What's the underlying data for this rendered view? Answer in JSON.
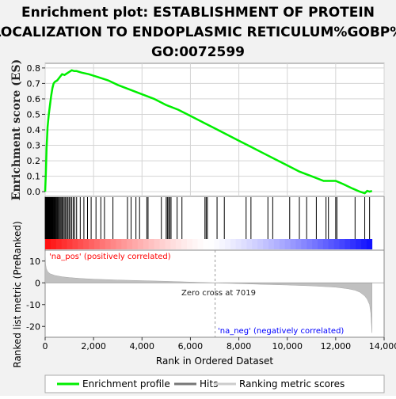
{
  "chart_data": {
    "type": "line",
    "title_lines": [
      "Enrichment plot: ESTABLISHMENT OF PROTEIN",
      "LOCALIZATION TO ENDOPLASMIC RETICULUM%GOBP%",
      "GO:0072599"
    ],
    "es_panel": {
      "ylabel": "Enrichment score (ES)",
      "ylim": [
        -0.03,
        0.83
      ],
      "yticks": [
        "0.0",
        "0.1",
        "0.2",
        "0.3",
        "0.4",
        "0.5",
        "0.6",
        "0.7",
        "0.8"
      ],
      "ytick_values": [
        0.0,
        0.1,
        0.2,
        0.3,
        0.4,
        0.5,
        0.6,
        0.7,
        0.8
      ],
      "series": [
        {
          "name": "Enrichment profile",
          "color": "#00ee00",
          "x": [
            0,
            30,
            60,
            100,
            150,
            200,
            250,
            300,
            350,
            400,
            500,
            600,
            700,
            800,
            900,
            1000,
            1100,
            1200,
            1300,
            1500,
            1800,
            2200,
            2600,
            3000,
            3500,
            4000,
            4500,
            5000,
            5500,
            6000,
            6500,
            7000,
            7500,
            8000,
            8500,
            9000,
            9500,
            10000,
            10500,
            11000,
            11500,
            12000,
            12300,
            12700,
            13000,
            13200,
            13300,
            13400,
            13500
          ],
          "y": [
            0.0,
            0.12,
            0.28,
            0.42,
            0.5,
            0.56,
            0.62,
            0.67,
            0.7,
            0.71,
            0.72,
            0.74,
            0.76,
            0.755,
            0.765,
            0.775,
            0.785,
            0.78,
            0.78,
            0.77,
            0.76,
            0.74,
            0.72,
            0.69,
            0.66,
            0.63,
            0.6,
            0.56,
            0.53,
            0.49,
            0.45,
            0.41,
            0.37,
            0.33,
            0.29,
            0.25,
            0.21,
            0.17,
            0.13,
            0.1,
            0.07,
            0.07,
            0.05,
            0.02,
            0.0,
            -0.01,
            0.005,
            0.0,
            0.005
          ]
        }
      ]
    },
    "hits_panel": {
      "hit_ranks": [
        5,
        12,
        20,
        28,
        35,
        44,
        52,
        60,
        70,
        80,
        90,
        100,
        112,
        125,
        138,
        150,
        165,
        180,
        195,
        210,
        228,
        245,
        262,
        280,
        300,
        320,
        345,
        370,
        395,
        420,
        450,
        480,
        510,
        545,
        580,
        620,
        660,
        700,
        745,
        790,
        840,
        890,
        940,
        990,
        1040,
        1100,
        1160,
        1220,
        1300,
        1450,
        1600,
        1750,
        1900,
        2100,
        2300,
        2450,
        2800,
        3400,
        3550,
        3750,
        3900,
        4200,
        4250,
        4800,
        5000,
        5050,
        5100,
        5150,
        5200,
        5450,
        5650,
        6600,
        6650,
        6700,
        7100,
        7400,
        8300,
        8500,
        9200,
        9400,
        10100,
        10500,
        10800,
        11200,
        11600,
        11700,
        12000,
        12050,
        12800,
        13200,
        13400
      ]
    },
    "ranking_panel": {
      "ylabel": "Ranked list metric (PreRanked)",
      "ylim": [
        -25,
        15
      ],
      "yticks": [
        "10",
        "0",
        "-10",
        "-20"
      ],
      "ytick_values": [
        10,
        0,
        -10,
        -20
      ],
      "rank_x": [
        0,
        20,
        50,
        100,
        200,
        400,
        700,
        1000,
        1500,
        2000,
        3000,
        4000,
        5000,
        6000,
        7019,
        8000,
        9000,
        10000,
        11000,
        12000,
        12500,
        12800,
        13000,
        13200,
        13300,
        13400,
        13450,
        13500
      ],
      "metric_y": [
        14.5,
        8.5,
        6.5,
        5.2,
        4.2,
        3.4,
        2.8,
        2.4,
        2.0,
        1.7,
        1.3,
        1.0,
        0.7,
        0.35,
        0.0,
        -0.35,
        -0.7,
        -1.0,
        -1.4,
        -2.0,
        -2.7,
        -3.4,
        -4.3,
        -6.0,
        -7.5,
        -10.0,
        -14.0,
        -23.0
      ],
      "pos_label": "'na_pos' (positively correlated)",
      "neg_label": "'na_neg' (negatively correlated)",
      "zero_cross_label": "Zero cross at 7019",
      "zero_cross_rank": 7019
    },
    "xaxis": {
      "label": "Rank in Ordered Dataset",
      "xlim": [
        0,
        14000
      ],
      "xticks": [
        "0",
        "2,000",
        "4,000",
        "6,000",
        "8,000",
        "10,000",
        "12,000",
        "14,000"
      ],
      "xtick_values": [
        0,
        2000,
        4000,
        6000,
        8000,
        10000,
        12000,
        14000
      ],
      "n_genes": 13500
    },
    "legend": {
      "placement": "bottom",
      "items": [
        {
          "label": "Enrichment profile",
          "color": "#00ee00"
        },
        {
          "label": "Hits",
          "color": "#777777"
        },
        {
          "label": "Ranking metric scores",
          "color": "#cccccc"
        }
      ]
    },
    "colors": {
      "pos_label": "#ff0000",
      "neg_label": "#0000ff",
      "metric_fill": "#c0c0c0",
      "grid": "#d4d4d4"
    }
  }
}
